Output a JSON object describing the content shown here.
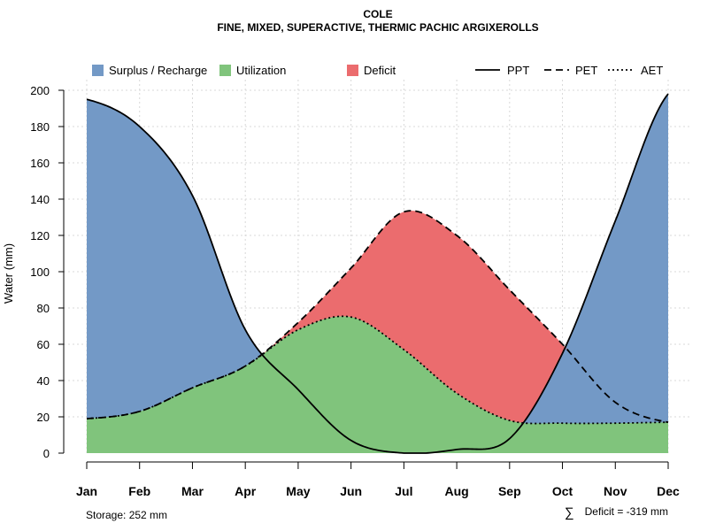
{
  "chart_data": {
    "type": "area",
    "title": "COLE",
    "subtitle": "FINE, MIXED, SUPERACTIVE, THERMIC PACHIC ARGIXEROLLS",
    "xlabel": "",
    "ylabel": "Water (mm)",
    "ylim": [
      0,
      200
    ],
    "yticks": [
      0,
      20,
      40,
      60,
      80,
      100,
      120,
      140,
      160,
      180,
      200
    ],
    "grid": true,
    "legend_position": "top",
    "categories": [
      "Jan",
      "Feb",
      "Mar",
      "Apr",
      "May",
      "Jun",
      "Jul",
      "Aug",
      "Sep",
      "Oct",
      "Nov",
      "Dec"
    ],
    "series": [
      {
        "name": "PPT",
        "line_style": "solid",
        "values": [
          195,
          180,
          142,
          68,
          35,
          7,
          0,
          2,
          8,
          55,
          128,
          198
        ]
      },
      {
        "name": "PET",
        "line_style": "dashed",
        "values": [
          19,
          23,
          36,
          48,
          72,
          102,
          133,
          120,
          90,
          60,
          28,
          17
        ]
      },
      {
        "name": "AET",
        "line_style": "dotted",
        "values": [
          19,
          23,
          36,
          48,
          68,
          75,
          57,
          33,
          18,
          16.5,
          16.5,
          17
        ]
      }
    ],
    "fills": [
      {
        "name": "Surplus / Recharge",
        "color": "#7399C6"
      },
      {
        "name": "Utilization",
        "color": "#80C47C"
      },
      {
        "name": "Deficit",
        "color": "#EB6C6E"
      }
    ],
    "legend": {
      "fill_items": [
        "Surplus / Recharge",
        "Utilization",
        "Deficit"
      ],
      "line_items": [
        "PPT",
        "PET",
        "AET"
      ]
    },
    "annotations": {
      "storage": "Storage: 252 mm",
      "deficit_symbol": "∑",
      "deficit": "Deficit = -319 mm"
    }
  }
}
